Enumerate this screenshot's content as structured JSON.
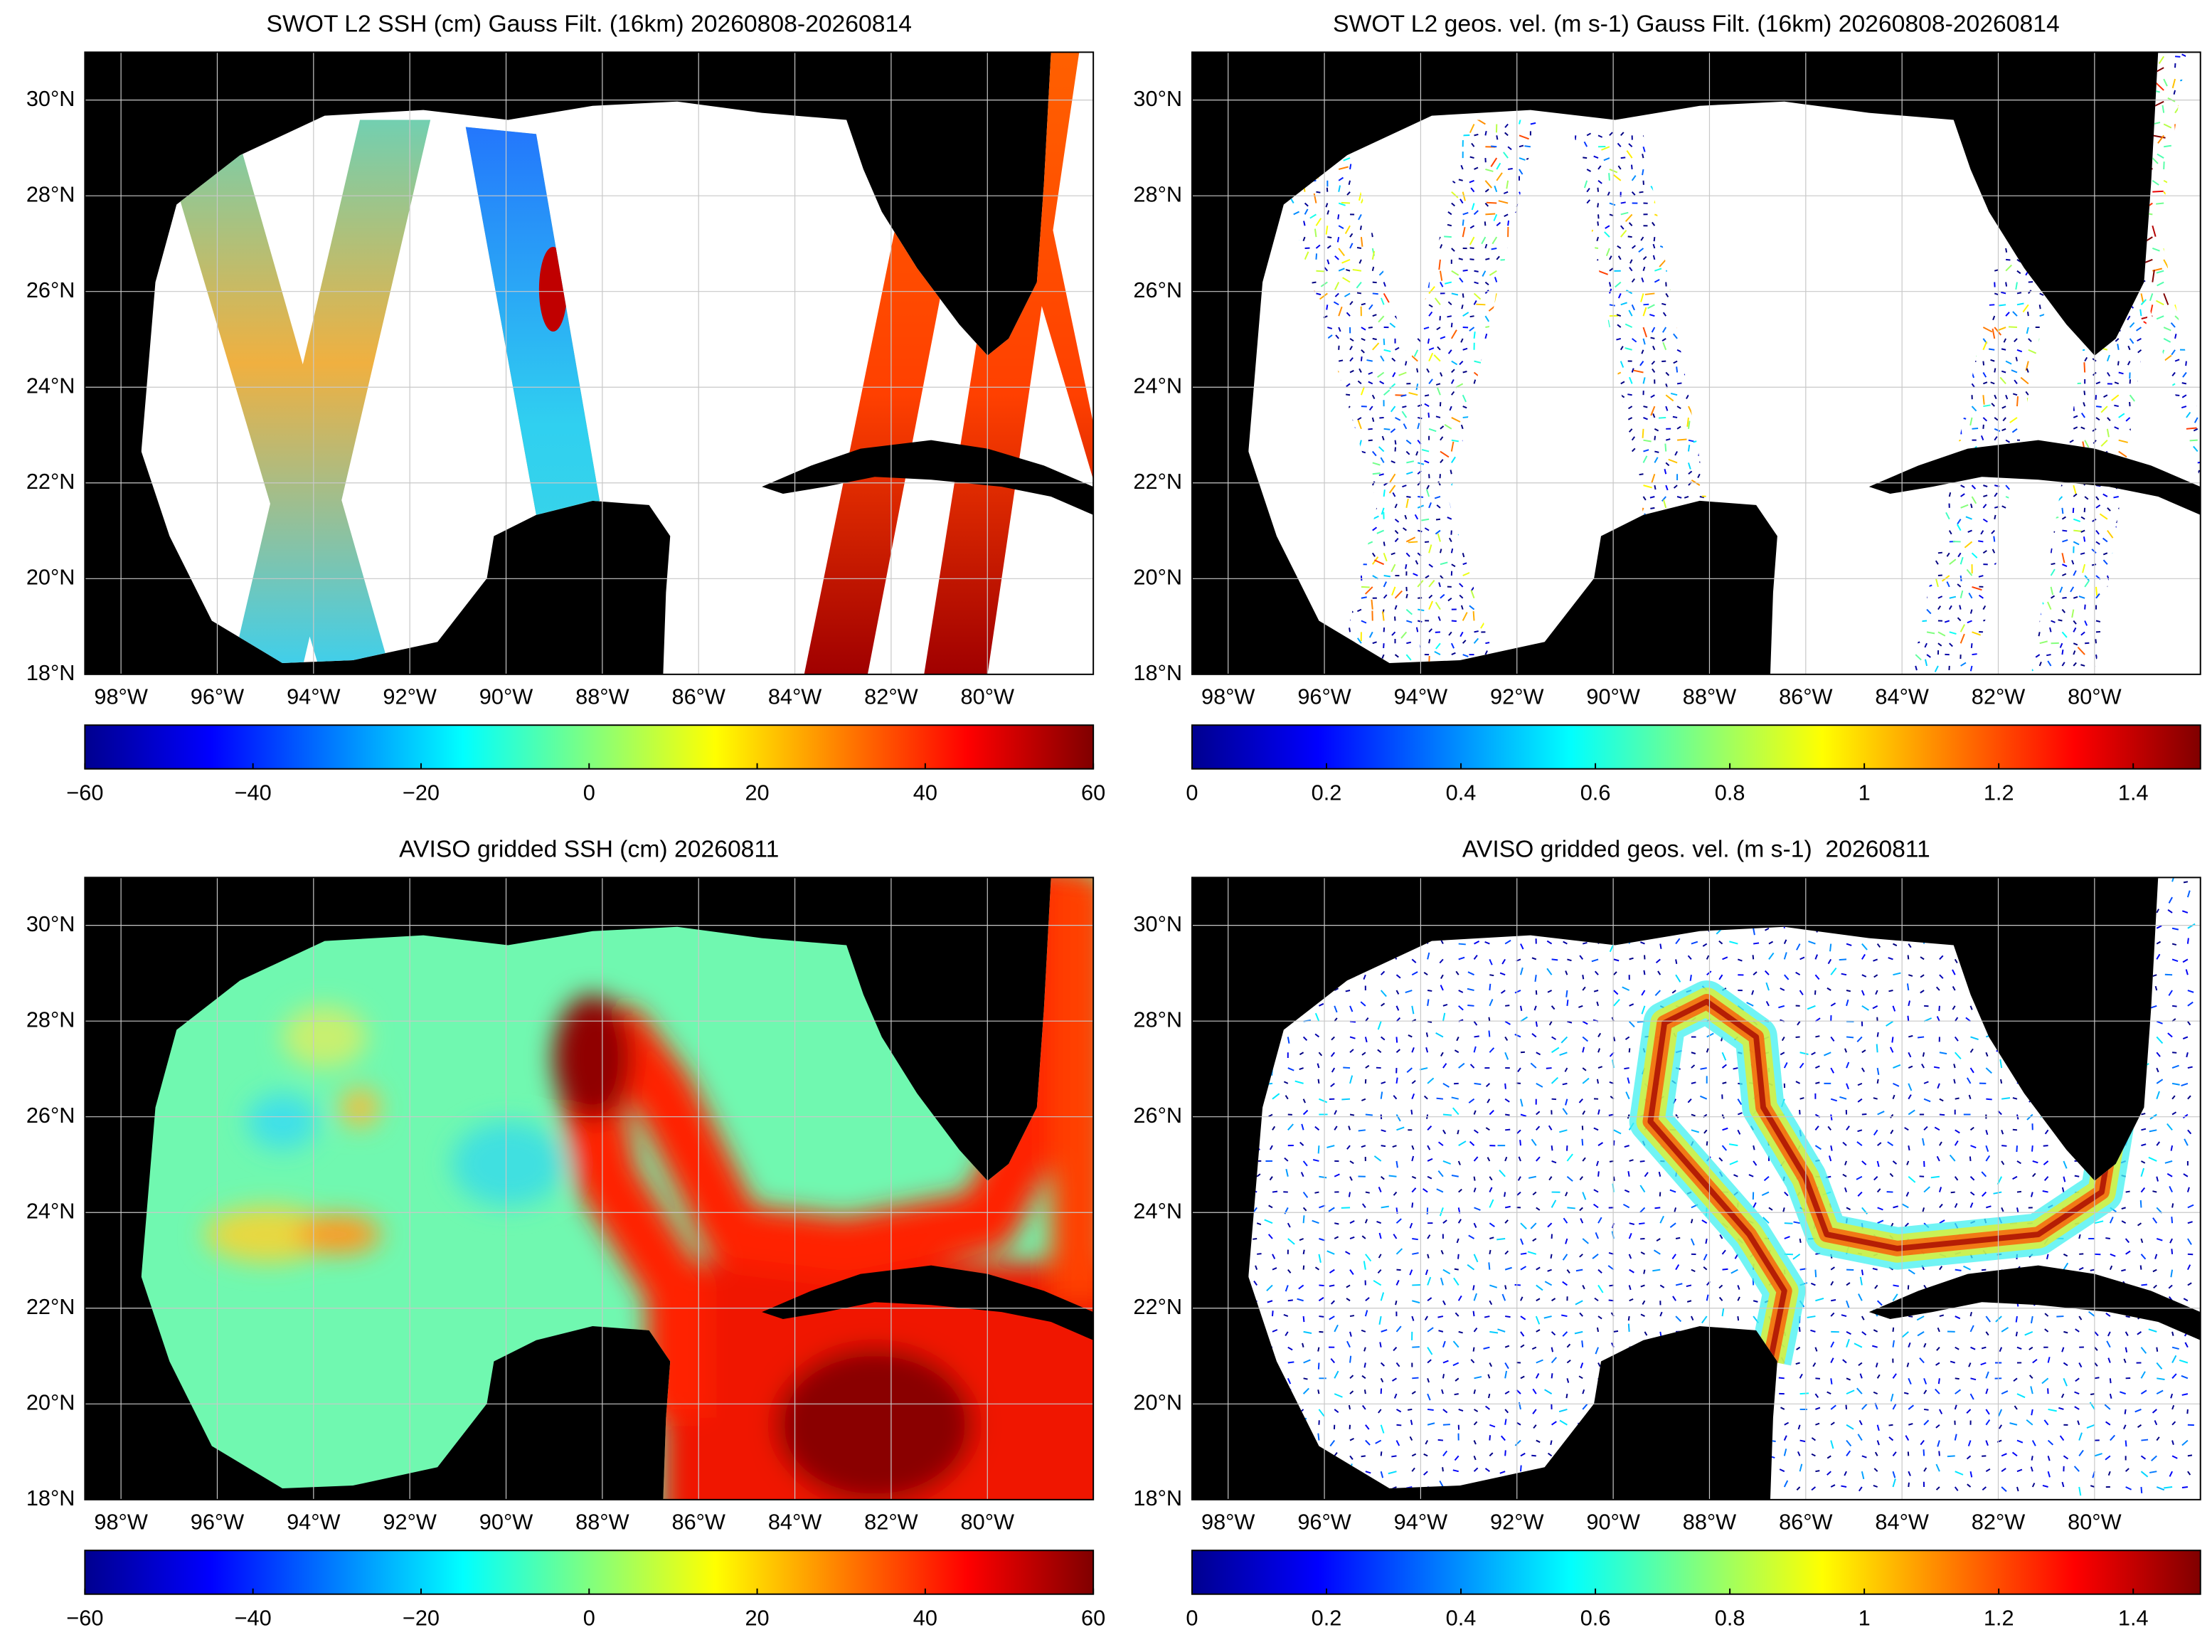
{
  "chart_data": [
    {
      "type": "map",
      "title": "SWOT L2 SSH (cm) Gauss Filt. (16km) 20260808-20260814",
      "xlim": [
        -98.75,
        -77.8
      ],
      "ylim": [
        18,
        31
      ],
      "xticks": [
        {
          "value": -98,
          "label": "98°W"
        },
        {
          "value": -96,
          "label": "96°W"
        },
        {
          "value": -94,
          "label": "94°W"
        },
        {
          "value": -92,
          "label": "92°W"
        },
        {
          "value": -90,
          "label": "90°W"
        },
        {
          "value": -88,
          "label": "88°W"
        },
        {
          "value": -86,
          "label": "86°W"
        },
        {
          "value": -84,
          "label": "84°W"
        },
        {
          "value": -82,
          "label": "82°W"
        },
        {
          "value": -80,
          "label": "80°W"
        }
      ],
      "yticks": [
        {
          "value": 18,
          "label": "18°N"
        },
        {
          "value": 20,
          "label": "20°N"
        },
        {
          "value": 22,
          "label": "22°N"
        },
        {
          "value": 24,
          "label": "24°N"
        },
        {
          "value": 26,
          "label": "26°N"
        },
        {
          "value": 28,
          "label": "28°N"
        },
        {
          "value": 30,
          "label": "30°N"
        }
      ],
      "grid": true,
      "colorbar": {
        "lim": [
          -60,
          60
        ],
        "ticks": [
          {
            "value": -60,
            "label": "−60"
          },
          {
            "value": -40,
            "label": "−40"
          },
          {
            "value": -20,
            "label": "−20"
          },
          0,
          20,
          40,
          60
        ]
      }
    },
    {
      "type": "map",
      "title": "SWOT L2 geos. vel. (m s-1) Gauss Filt. (16km) 20260808-20260814",
      "xlim": [
        -98.75,
        -77.8
      ],
      "ylim": [
        18,
        31
      ],
      "xticks": [
        {
          "value": -98,
          "label": "98°W"
        },
        {
          "value": -96,
          "label": "96°W"
        },
        {
          "value": -94,
          "label": "94°W"
        },
        {
          "value": -92,
          "label": "92°W"
        },
        {
          "value": -90,
          "label": "90°W"
        },
        {
          "value": -88,
          "label": "88°W"
        },
        {
          "value": -86,
          "label": "86°W"
        },
        {
          "value": -84,
          "label": "84°W"
        },
        {
          "value": -82,
          "label": "82°W"
        },
        {
          "value": -80,
          "label": "80°W"
        }
      ],
      "yticks": [
        {
          "value": 18,
          "label": "18°N"
        },
        {
          "value": 20,
          "label": "20°N"
        },
        {
          "value": 22,
          "label": "22°N"
        },
        {
          "value": 24,
          "label": "24°N"
        },
        {
          "value": 26,
          "label": "26°N"
        },
        {
          "value": 28,
          "label": "28°N"
        },
        {
          "value": 30,
          "label": "30°N"
        }
      ],
      "grid": true,
      "colorbar": {
        "lim": [
          0,
          1.5
        ],
        "ticks": [
          0,
          0.2,
          0.4,
          0.6,
          0.8,
          1,
          1.2,
          1.4
        ]
      }
    },
    {
      "type": "map",
      "title": "AVISO gridded SSH (cm) 20260811",
      "xlim": [
        -98.75,
        -77.8
      ],
      "ylim": [
        18,
        31
      ],
      "xticks": [
        {
          "value": -98,
          "label": "98°W"
        },
        {
          "value": -96,
          "label": "96°W"
        },
        {
          "value": -94,
          "label": "94°W"
        },
        {
          "value": -92,
          "label": "92°W"
        },
        {
          "value": -90,
          "label": "90°W"
        },
        {
          "value": -88,
          "label": "88°W"
        },
        {
          "value": -86,
          "label": "86°W"
        },
        {
          "value": -84,
          "label": "84°W"
        },
        {
          "value": -82,
          "label": "82°W"
        },
        {
          "value": -80,
          "label": "80°W"
        }
      ],
      "yticks": [
        {
          "value": 18,
          "label": "18°N"
        },
        {
          "value": 20,
          "label": "20°N"
        },
        {
          "value": 22,
          "label": "22°N"
        },
        {
          "value": 24,
          "label": "24°N"
        },
        {
          "value": 26,
          "label": "26°N"
        },
        {
          "value": 28,
          "label": "28°N"
        },
        {
          "value": 30,
          "label": "30°N"
        }
      ],
      "grid": true,
      "colorbar": {
        "lim": [
          -60,
          60
        ],
        "ticks": [
          {
            "value": -60,
            "label": "−60"
          },
          {
            "value": -40,
            "label": "−40"
          },
          {
            "value": -20,
            "label": "−20"
          },
          0,
          20,
          40,
          60
        ]
      }
    },
    {
      "type": "map",
      "title": "AVISO gridded geos. vel. (m s-1)  20260811",
      "xlim": [
        -98.75,
        -77.8
      ],
      "ylim": [
        18,
        31
      ],
      "xticks": [
        {
          "value": -98,
          "label": "98°W"
        },
        {
          "value": -96,
          "label": "96°W"
        },
        {
          "value": -94,
          "label": "94°W"
        },
        {
          "value": -92,
          "label": "92°W"
        },
        {
          "value": -90,
          "label": "90°W"
        },
        {
          "value": -88,
          "label": "88°W"
        },
        {
          "value": -86,
          "label": "86°W"
        },
        {
          "value": -84,
          "label": "84°W"
        },
        {
          "value": -82,
          "label": "82°W"
        },
        {
          "value": -80,
          "label": "80°W"
        }
      ],
      "yticks": [
        {
          "value": 18,
          "label": "18°N"
        },
        {
          "value": 20,
          "label": "20°N"
        },
        {
          "value": 22,
          "label": "22°N"
        },
        {
          "value": 24,
          "label": "24°N"
        },
        {
          "value": 26,
          "label": "26°N"
        },
        {
          "value": 28,
          "label": "28°N"
        },
        {
          "value": 30,
          "label": "30°N"
        }
      ],
      "grid": true,
      "colorbar": {
        "lim": [
          0,
          1.5
        ],
        "ticks": [
          0,
          0.2,
          0.4,
          0.6,
          0.8,
          1,
          1.2,
          1.4
        ]
      }
    }
  ]
}
